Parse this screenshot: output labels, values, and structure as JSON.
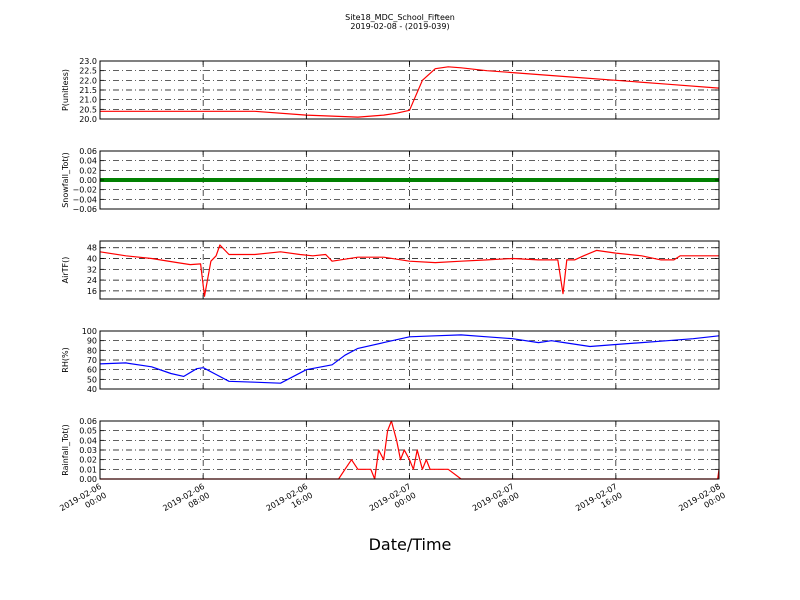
{
  "figure": {
    "title": "Site18_MDC_School_Fifteen",
    "subtitle": "2019-02-08 - (2019-039)",
    "xlabel": "Date/Time",
    "x_ticks": [
      {
        "line1": "2019-02-06",
        "line2": "00:00"
      },
      {
        "line1": "2019-02-06",
        "line2": "08:00"
      },
      {
        "line1": "2019-02-06",
        "line2": "16:00"
      },
      {
        "line1": "2019-02-07",
        "line2": "00:00"
      },
      {
        "line1": "2019-02-07",
        "line2": "08:00"
      },
      {
        "line1": "2019-02-07",
        "line2": "16:00"
      },
      {
        "line1": "2019-02-08",
        "line2": "00:00"
      }
    ]
  },
  "chart_data": [
    {
      "type": "line",
      "ylabel": "P(unitless)",
      "color": "#ff0000",
      "ylim": [
        20.0,
        23.0
      ],
      "yticks": [
        "20.0",
        "20.5",
        "21.0",
        "21.5",
        "22.0",
        "22.5",
        "23.0"
      ],
      "ytick_values": [
        20.0,
        20.5,
        21.0,
        21.5,
        22.0,
        22.5,
        23.0
      ],
      "grid": true,
      "x_hours": [
        0,
        6,
        12,
        16,
        20,
        21,
        22,
        23,
        24,
        25,
        26,
        27,
        28,
        30,
        32,
        36,
        40,
        44,
        48
      ],
      "y": [
        20.4,
        20.4,
        20.4,
        20.2,
        20.1,
        20.15,
        20.2,
        20.3,
        20.45,
        22.0,
        22.6,
        22.7,
        22.65,
        22.5,
        22.4,
        22.2,
        22.0,
        21.8,
        21.6
      ]
    },
    {
      "type": "line",
      "ylabel": "Snowfall_Tot()",
      "color": "#008000",
      "ylim": [
        -0.06,
        0.06
      ],
      "yticks": [
        "−0.06",
        "−0.04",
        "−0.02",
        "0.00",
        "0.02",
        "0.04",
        "0.06"
      ],
      "ytick_values": [
        -0.06,
        -0.04,
        -0.02,
        0.0,
        0.02,
        0.04,
        0.06
      ],
      "grid": true,
      "x_hours": [
        0,
        48
      ],
      "y": [
        0.0,
        0.0
      ]
    },
    {
      "type": "line",
      "ylabel": "AirTF()",
      "color": "#ff0000",
      "ylim": [
        10,
        53
      ],
      "yticks": [
        "16",
        "24",
        "32",
        "40",
        "48"
      ],
      "ytick_values": [
        16,
        24,
        32,
        40,
        48
      ],
      "grid": true,
      "x_hours": [
        0,
        2,
        4,
        6,
        7,
        7.8,
        8.1,
        8.6,
        9,
        9.3,
        10,
        12,
        14,
        15.5,
        16.5,
        17.5,
        18,
        20,
        22,
        24,
        26,
        28,
        30,
        32,
        34,
        35.5,
        35.9,
        36.2,
        36.8,
        37.5,
        38.5,
        40,
        42,
        43.5,
        44.5,
        45,
        46,
        48
      ],
      "y": [
        45,
        42,
        40,
        37,
        35.5,
        36,
        12,
        38,
        42,
        50,
        43,
        43,
        45,
        43,
        42,
        43,
        38,
        41,
        41,
        38,
        37,
        38,
        39,
        40,
        39,
        39,
        14,
        39,
        39,
        42,
        46,
        44,
        42,
        39,
        39,
        42,
        42,
        42
      ]
    },
    {
      "type": "line",
      "ylabel": "RH(%)",
      "color": "#0000ff",
      "ylim": [
        40,
        100
      ],
      "yticks": [
        "40",
        "50",
        "60",
        "70",
        "80",
        "90",
        "100"
      ],
      "ytick_values": [
        40,
        50,
        60,
        70,
        80,
        90,
        100
      ],
      "grid": true,
      "x_hours": [
        0,
        2,
        4,
        5.5,
        6.5,
        7.5,
        8,
        9,
        10,
        12,
        14,
        16,
        18,
        19,
        20,
        22,
        24,
        26,
        28,
        30,
        32,
        34,
        35,
        36,
        38,
        40,
        42,
        44,
        46,
        48
      ],
      "y": [
        66,
        67,
        63,
        56,
        53,
        61,
        62,
        55,
        48,
        47,
        46,
        60,
        65,
        75,
        82,
        88,
        94,
        95,
        96,
        94,
        92,
        88,
        90,
        88,
        84,
        86,
        88,
        90,
        92,
        95
      ]
    },
    {
      "type": "line",
      "ylabel": "Rainfall_Tot()",
      "color": "#ff0000",
      "ylim": [
        0.0,
        0.06
      ],
      "yticks": [
        "0.00",
        "0.01",
        "0.02",
        "0.03",
        "0.04",
        "0.05",
        "0.06"
      ],
      "ytick_values": [
        0.0,
        0.01,
        0.02,
        0.03,
        0.04,
        0.05,
        0.06
      ],
      "grid": true,
      "x_hours": [
        0,
        18,
        18.5,
        19,
        19.5,
        20,
        21,
        21.3,
        21.6,
        22,
        22.3,
        22.6,
        23,
        23.3,
        23.6,
        24,
        24.3,
        24.6,
        25,
        25.3,
        25.6,
        26,
        26.5,
        27,
        28,
        47.9,
        48
      ],
      "y": [
        0,
        0,
        0,
        0.01,
        0.02,
        0.01,
        0.01,
        0,
        0.03,
        0.02,
        0.05,
        0.06,
        0.04,
        0.02,
        0.03,
        0.02,
        0.01,
        0.03,
        0.01,
        0.02,
        0.01,
        0.01,
        0.01,
        0.01,
        0,
        0,
        0.01
      ]
    }
  ]
}
